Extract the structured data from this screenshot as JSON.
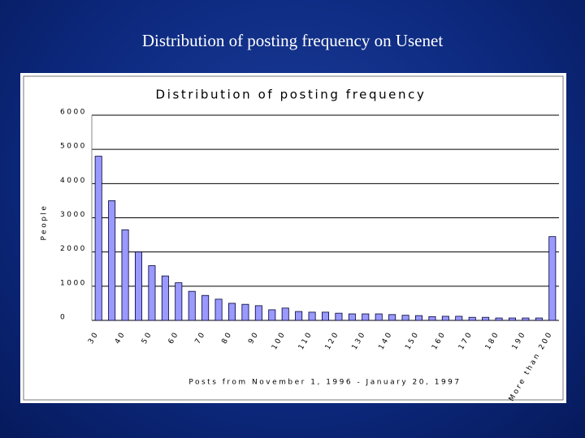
{
  "slide_title": "Distribution of posting frequency on Usenet",
  "chart_data": {
    "type": "bar",
    "title": "Distribution of posting frequency",
    "y_label": "People",
    "x_label": "Posts from November 1, 1996 - January 20, 1997",
    "categories": [
      "30",
      null,
      "40",
      null,
      "50",
      null,
      "60",
      null,
      "70",
      null,
      "80",
      null,
      "90",
      null,
      "100",
      null,
      "110",
      null,
      "120",
      null,
      "130",
      null,
      "140",
      null,
      "150",
      null,
      "160",
      null,
      "170",
      null,
      "180",
      null,
      "190",
      null,
      "More than 200"
    ],
    "values": [
      4800,
      3500,
      2650,
      2000,
      1600,
      1300,
      1100,
      850,
      730,
      620,
      500,
      470,
      430,
      310,
      360,
      260,
      240,
      240,
      210,
      190,
      190,
      190,
      170,
      150,
      140,
      110,
      120,
      120,
      90,
      90,
      70,
      70,
      70,
      70,
      2450
    ],
    "color": "#9999ff",
    "ylim": [
      0,
      6000
    ],
    "yticks": [
      0,
      1000,
      2000,
      3000,
      4000,
      5000,
      6000
    ],
    "grid": true
  }
}
